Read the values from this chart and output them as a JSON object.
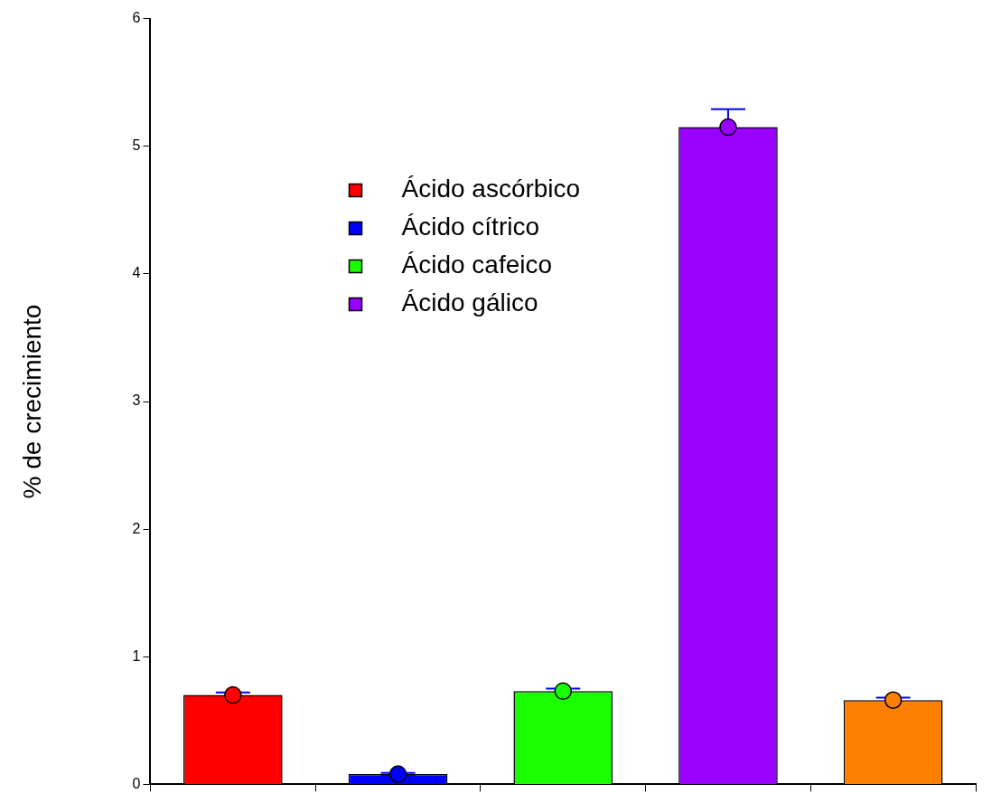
{
  "chart_data": {
    "type": "bar",
    "ylabel": "% de crecimiento",
    "categories": [
      null,
      null,
      null,
      null,
      null
    ],
    "marker": "circle",
    "legend": "top left",
    "grid": false,
    "tick_labels": "y",
    "ylim": [
      0,
      6
    ],
    "yticks": [
      0,
      1,
      2,
      3,
      4,
      5,
      6
    ],
    "series": [
      {
        "name": "Ácido ascórbico",
        "color": "#ff0000",
        "values": [
          0.7,
          null,
          null,
          null,
          null
        ]
      },
      {
        "name": "Ácido cítrico",
        "color": "#0000ff",
        "values": [
          null,
          0.08,
          null,
          null,
          null
        ]
      },
      {
        "name": "Ácido cafeico",
        "color": "#1aff00",
        "values": [
          null,
          null,
          0.73,
          null,
          null
        ]
      },
      {
        "name": "Ácido gálico",
        "color": "#9900ff",
        "values": [
          null,
          null,
          null,
          5.15,
          null
        ]
      },
      {
        "color": "#ff8000",
        "values": [
          null,
          null,
          null,
          null,
          0.66
        ]
      },
      {
        "type": "scatter",
        "colors": [
          "#ff0000",
          "#0000ff",
          "#1aff00",
          "#9900ff",
          "#ff8000"
        ],
        "values": [
          0.7,
          0.08,
          0.73,
          5.15,
          0.66
        ],
        "errors": [
          0.02,
          0.01,
          0.02,
          0.14,
          0.02
        ]
      }
    ]
  }
}
